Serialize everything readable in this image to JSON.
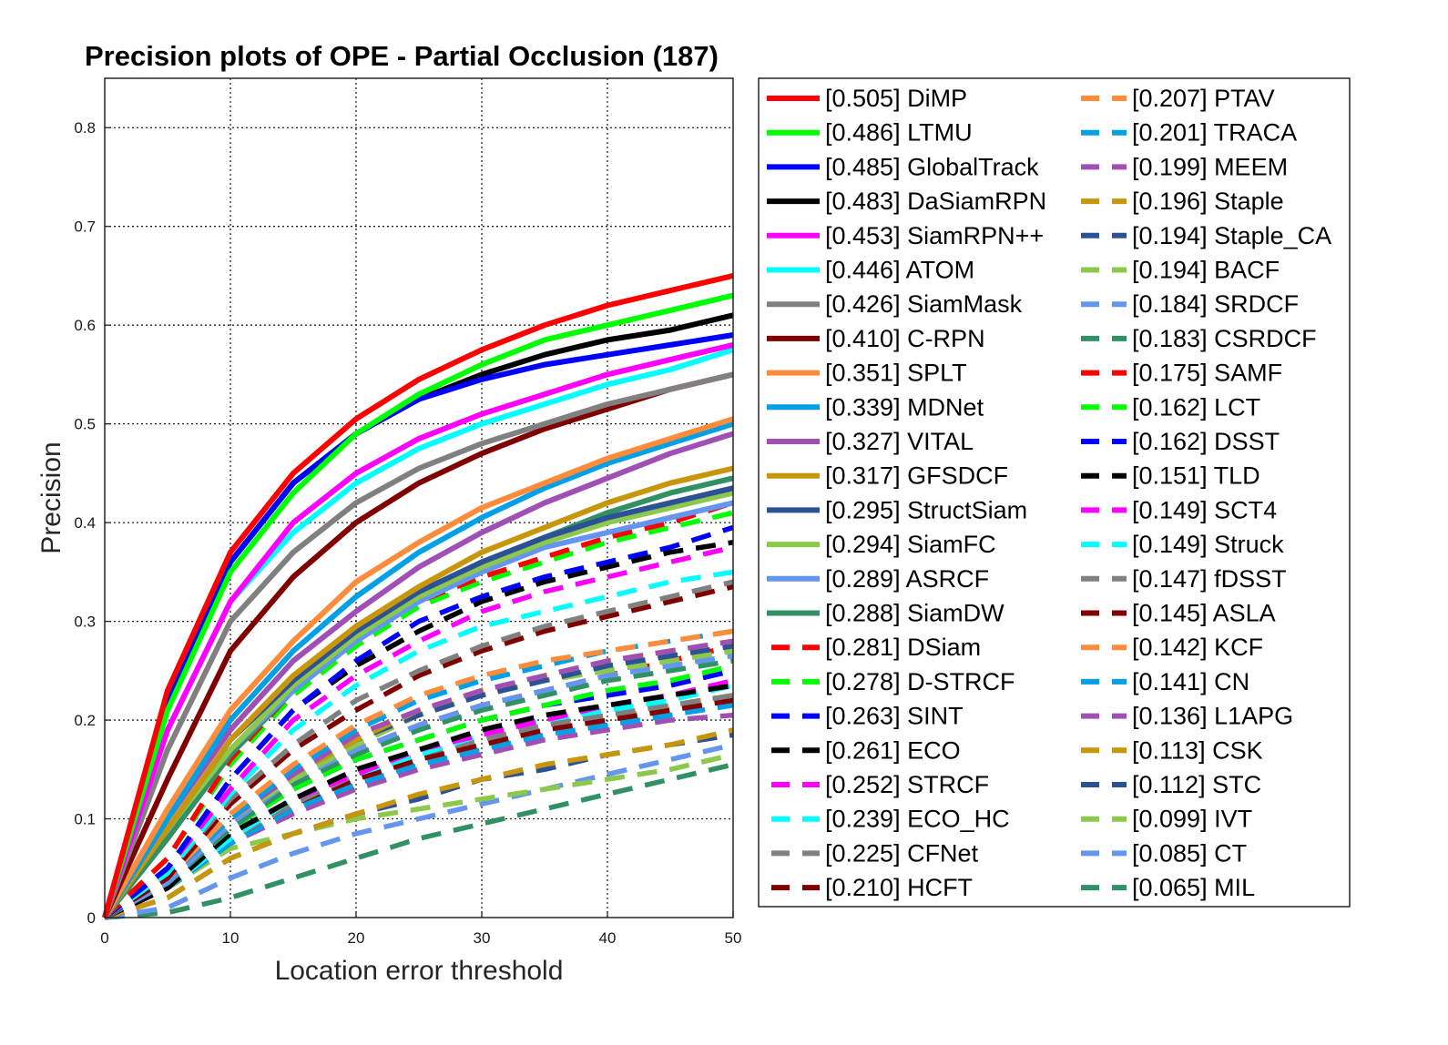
{
  "chart_data": {
    "type": "line",
    "title": "Precision plots of OPE - Partial Occlusion (187)",
    "xlabel": "Location error threshold",
    "ylabel": "Precision",
    "xlim": [
      0,
      50
    ],
    "ylim": [
      0,
      0.8
    ],
    "xticks": [
      0,
      10,
      20,
      30,
      40,
      50
    ],
    "yticks": [
      0,
      0.1,
      0.2,
      0.3,
      0.4,
      0.5,
      0.6,
      0.7,
      0.8
    ],
    "ytick_labels": [
      "0",
      "0.1",
      "0.2",
      "0.3",
      "0.4",
      "0.5",
      "0.6",
      "0.7",
      "0.8"
    ],
    "grid": true,
    "legend_position": "right",
    "x": [
      0,
      5,
      10,
      15,
      20,
      25,
      30,
      35,
      40,
      45,
      50
    ],
    "series": [
      {
        "name": "[0.505] DiMP",
        "color": "#ff0000",
        "style": "solid",
        "values": [
          0,
          0.23,
          0.37,
          0.45,
          0.505,
          0.545,
          0.575,
          0.6,
          0.62,
          0.635,
          0.65
        ]
      },
      {
        "name": "[0.486] LTMU",
        "color": "#00ff00",
        "style": "solid",
        "values": [
          0,
          0.21,
          0.35,
          0.43,
          0.49,
          0.53,
          0.56,
          0.585,
          0.6,
          0.615,
          0.63
        ]
      },
      {
        "name": "[0.485] GlobalTrack",
        "color": "#0000ff",
        "style": "solid",
        "values": [
          0,
          0.22,
          0.36,
          0.44,
          0.49,
          0.525,
          0.545,
          0.56,
          0.57,
          0.58,
          0.59
        ]
      },
      {
        "name": "[0.483] DaSiamRPN",
        "color": "#000000",
        "style": "solid",
        "values": [
          0,
          0.22,
          0.36,
          0.44,
          0.49,
          0.525,
          0.55,
          0.57,
          0.585,
          0.595,
          0.61
        ]
      },
      {
        "name": "[0.453] SiamRPN++",
        "color": "#ff00ff",
        "style": "solid",
        "values": [
          0,
          0.19,
          0.32,
          0.4,
          0.45,
          0.485,
          0.51,
          0.53,
          0.55,
          0.565,
          0.58
        ]
      },
      {
        "name": "[0.446] ATOM",
        "color": "#00ffff",
        "style": "solid",
        "values": [
          0,
          0.19,
          0.32,
          0.39,
          0.44,
          0.475,
          0.5,
          0.52,
          0.54,
          0.555,
          0.575
        ]
      },
      {
        "name": "[0.426] SiamMask",
        "color": "#808080",
        "style": "solid",
        "values": [
          0,
          0.17,
          0.3,
          0.37,
          0.42,
          0.455,
          0.48,
          0.5,
          0.52,
          0.535,
          0.55
        ]
      },
      {
        "name": "[0.410] C-RPN",
        "color": "#800000",
        "style": "solid",
        "values": [
          0,
          0.14,
          0.27,
          0.345,
          0.4,
          0.44,
          0.47,
          0.495,
          0.515,
          0.535,
          0.55
        ]
      },
      {
        "name": "[0.351] SPLT",
        "color": "#ff8c3b",
        "style": "solid",
        "values": [
          0,
          0.11,
          0.21,
          0.28,
          0.34,
          0.38,
          0.415,
          0.44,
          0.465,
          0.485,
          0.505
        ]
      },
      {
        "name": "[0.339] MDNet",
        "color": "#00a0e6",
        "style": "solid",
        "values": [
          0,
          0.1,
          0.2,
          0.27,
          0.325,
          0.37,
          0.405,
          0.435,
          0.46,
          0.48,
          0.5
        ]
      },
      {
        "name": "[0.327] VITAL",
        "color": "#a050b4",
        "style": "solid",
        "values": [
          0,
          0.1,
          0.19,
          0.26,
          0.31,
          0.355,
          0.39,
          0.42,
          0.445,
          0.47,
          0.49
        ]
      },
      {
        "name": "[0.317] GFSDCF",
        "color": "#c8960a",
        "style": "solid",
        "values": [
          0,
          0.09,
          0.18,
          0.245,
          0.295,
          0.335,
          0.37,
          0.395,
          0.42,
          0.44,
          0.455
        ]
      },
      {
        "name": "[0.295] StructSiam",
        "color": "#2c5196",
        "style": "solid",
        "values": [
          0,
          0.09,
          0.18,
          0.24,
          0.29,
          0.33,
          0.36,
          0.385,
          0.405,
          0.42,
          0.435
        ]
      },
      {
        "name": "[0.294] SiamFC",
        "color": "#8cc84b",
        "style": "solid",
        "values": [
          0,
          0.09,
          0.17,
          0.235,
          0.285,
          0.325,
          0.355,
          0.38,
          0.4,
          0.415,
          0.43
        ]
      },
      {
        "name": "[0.289] ASRCF",
        "color": "#6496f0",
        "style": "solid",
        "values": [
          0,
          0.09,
          0.17,
          0.23,
          0.28,
          0.32,
          0.35,
          0.375,
          0.39,
          0.405,
          0.42
        ]
      },
      {
        "name": "[0.288] SiamDW",
        "color": "#329164",
        "style": "solid",
        "values": [
          0,
          0.08,
          0.165,
          0.23,
          0.28,
          0.325,
          0.36,
          0.385,
          0.41,
          0.43,
          0.445
        ]
      },
      {
        "name": "[0.281] DSiam",
        "color": "#ff0000",
        "style": "dash",
        "values": [
          0,
          0.06,
          0.16,
          0.23,
          0.28,
          0.32,
          0.345,
          0.365,
          0.385,
          0.4,
          0.42
        ]
      },
      {
        "name": "[0.278] D-STRCF",
        "color": "#00ff00",
        "style": "dash",
        "values": [
          0,
          0.06,
          0.155,
          0.225,
          0.275,
          0.315,
          0.34,
          0.36,
          0.38,
          0.395,
          0.41
        ]
      },
      {
        "name": "[0.263] SINT",
        "color": "#0000ff",
        "style": "dash",
        "values": [
          0,
          0.05,
          0.14,
          0.21,
          0.26,
          0.3,
          0.325,
          0.345,
          0.36,
          0.375,
          0.395
        ]
      },
      {
        "name": "[0.261] ECO",
        "color": "#000000",
        "style": "dash",
        "values": [
          0,
          0.05,
          0.14,
          0.21,
          0.255,
          0.29,
          0.32,
          0.34,
          0.355,
          0.37,
          0.38
        ]
      },
      {
        "name": "[0.252] STRCF",
        "color": "#ff00ff",
        "style": "dash",
        "values": [
          0,
          0.05,
          0.13,
          0.2,
          0.245,
          0.28,
          0.31,
          0.33,
          0.345,
          0.36,
          0.375
        ]
      },
      {
        "name": "[0.239] ECO_HC",
        "color": "#00ffff",
        "style": "dash",
        "values": [
          0,
          0.045,
          0.125,
          0.19,
          0.235,
          0.27,
          0.295,
          0.31,
          0.325,
          0.34,
          0.35
        ]
      },
      {
        "name": "[0.225] CFNet",
        "color": "#808080",
        "style": "dash",
        "values": [
          0,
          0.045,
          0.12,
          0.175,
          0.22,
          0.25,
          0.275,
          0.295,
          0.31,
          0.325,
          0.34
        ]
      },
      {
        "name": "[0.210] HCFT",
        "color": "#800000",
        "style": "dash",
        "values": [
          0,
          0.04,
          0.115,
          0.17,
          0.21,
          0.245,
          0.27,
          0.29,
          0.305,
          0.32,
          0.335
        ]
      },
      {
        "name": "[0.207] PTAV",
        "color": "#ff8c3b",
        "style": "dash",
        "values": [
          0,
          0.04,
          0.105,
          0.155,
          0.195,
          0.225,
          0.245,
          0.26,
          0.27,
          0.28,
          0.29
        ]
      },
      {
        "name": "[0.201] TRACA",
        "color": "#00a0e6",
        "style": "dash",
        "values": [
          0,
          0.04,
          0.1,
          0.15,
          0.19,
          0.22,
          0.24,
          0.255,
          0.27,
          0.28,
          0.29
        ]
      },
      {
        "name": "[0.199] MEEM",
        "color": "#a050b4",
        "style": "dash",
        "values": [
          0,
          0.04,
          0.1,
          0.145,
          0.185,
          0.21,
          0.23,
          0.245,
          0.26,
          0.27,
          0.28
        ]
      },
      {
        "name": "[0.196] Staple",
        "color": "#c8960a",
        "style": "dash",
        "values": [
          0,
          0.04,
          0.1,
          0.145,
          0.18,
          0.21,
          0.23,
          0.245,
          0.26,
          0.27,
          0.28
        ]
      },
      {
        "name": "[0.194] Staple_CA",
        "color": "#2c5196",
        "style": "dash",
        "values": [
          0,
          0.04,
          0.1,
          0.145,
          0.18,
          0.205,
          0.225,
          0.24,
          0.255,
          0.265,
          0.275
        ]
      },
      {
        "name": "[0.194] BACF",
        "color": "#8cc84b",
        "style": "dash",
        "values": [
          0,
          0.04,
          0.1,
          0.14,
          0.175,
          0.205,
          0.225,
          0.24,
          0.25,
          0.26,
          0.27
        ]
      },
      {
        "name": "[0.184] SRDCF",
        "color": "#6496f0",
        "style": "dash",
        "values": [
          0,
          0.035,
          0.095,
          0.14,
          0.17,
          0.195,
          0.215,
          0.23,
          0.245,
          0.255,
          0.265
        ]
      },
      {
        "name": "[0.183] CSRDCF",
        "color": "#329164",
        "style": "dash",
        "values": [
          0,
          0.035,
          0.09,
          0.135,
          0.165,
          0.19,
          0.21,
          0.225,
          0.24,
          0.25,
          0.26
        ]
      },
      {
        "name": "[0.175] SAMF",
        "color": "#ff0000",
        "style": "dash",
        "values": [
          0,
          0.04,
          0.1,
          0.14,
          0.17,
          0.195,
          0.215,
          0.23,
          0.245,
          0.26,
          0.275
        ]
      },
      {
        "name": "[0.162] LCT",
        "color": "#00ff00",
        "style": "dash",
        "values": [
          0,
          0.035,
          0.09,
          0.13,
          0.16,
          0.18,
          0.2,
          0.215,
          0.23,
          0.24,
          0.255
        ]
      },
      {
        "name": "[0.162] DSST",
        "color": "#0000ff",
        "style": "dash",
        "values": [
          0,
          0.035,
          0.09,
          0.13,
          0.16,
          0.18,
          0.2,
          0.215,
          0.225,
          0.235,
          0.25
        ]
      },
      {
        "name": "[0.151] TLD",
        "color": "#000000",
        "style": "dash",
        "values": [
          0,
          0.03,
          0.085,
          0.12,
          0.15,
          0.17,
          0.19,
          0.205,
          0.215,
          0.225,
          0.235
        ]
      },
      {
        "name": "[0.149] SCT4",
        "color": "#ff00ff",
        "style": "dash",
        "values": [
          0,
          0.03,
          0.085,
          0.12,
          0.145,
          0.17,
          0.185,
          0.2,
          0.215,
          0.225,
          0.24
        ]
      },
      {
        "name": "[0.149] Struck",
        "color": "#00ffff",
        "style": "dash",
        "values": [
          0,
          0.03,
          0.08,
          0.12,
          0.145,
          0.165,
          0.185,
          0.2,
          0.21,
          0.22,
          0.235
        ]
      },
      {
        "name": "[0.147] fDSST",
        "color": "#808080",
        "style": "dash",
        "values": [
          0,
          0.03,
          0.08,
          0.115,
          0.145,
          0.165,
          0.18,
          0.195,
          0.205,
          0.215,
          0.225
        ]
      },
      {
        "name": "[0.145] ASLA",
        "color": "#800000",
        "style": "dash",
        "values": [
          0,
          0.03,
          0.08,
          0.115,
          0.14,
          0.16,
          0.175,
          0.19,
          0.2,
          0.21,
          0.22
        ]
      },
      {
        "name": "[0.142] KCF",
        "color": "#ff8c3b",
        "style": "dash",
        "values": [
          0,
          0.03,
          0.08,
          0.115,
          0.14,
          0.16,
          0.175,
          0.19,
          0.2,
          0.215,
          0.225
        ]
      },
      {
        "name": "[0.141] CN",
        "color": "#00a0e6",
        "style": "dash",
        "values": [
          0,
          0.03,
          0.075,
          0.11,
          0.135,
          0.155,
          0.17,
          0.185,
          0.195,
          0.205,
          0.215
        ]
      },
      {
        "name": "[0.136] L1APG",
        "color": "#a050b4",
        "style": "dash",
        "values": [
          0,
          0.03,
          0.075,
          0.105,
          0.13,
          0.15,
          0.165,
          0.18,
          0.19,
          0.2,
          0.205
        ]
      },
      {
        "name": "[0.113] CSK",
        "color": "#c8960a",
        "style": "dash",
        "values": [
          0,
          0.02,
          0.06,
          0.085,
          0.105,
          0.125,
          0.14,
          0.155,
          0.165,
          0.175,
          0.19
        ]
      },
      {
        "name": "[0.112] STC",
        "color": "#2c5196",
        "style": "dash",
        "values": [
          0,
          0.02,
          0.06,
          0.085,
          0.105,
          0.12,
          0.14,
          0.15,
          0.165,
          0.175,
          0.185
        ]
      },
      {
        "name": "[0.099] IVT",
        "color": "#8cc84b",
        "style": "dash",
        "values": [
          0,
          0.03,
          0.07,
          0.085,
          0.1,
          0.11,
          0.12,
          0.13,
          0.14,
          0.15,
          0.165
        ]
      },
      {
        "name": "[0.085] CT",
        "color": "#6496f0",
        "style": "dash",
        "values": [
          0,
          0.01,
          0.04,
          0.065,
          0.085,
          0.1,
          0.115,
          0.13,
          0.145,
          0.16,
          0.175
        ]
      },
      {
        "name": "[0.065] MIL",
        "color": "#329164",
        "style": "dash",
        "values": [
          0,
          0.005,
          0.02,
          0.04,
          0.06,
          0.08,
          0.095,
          0.11,
          0.125,
          0.14,
          0.155
        ]
      }
    ]
  }
}
